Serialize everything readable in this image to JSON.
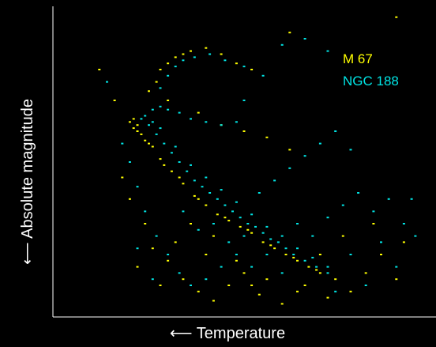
{
  "chart_data": {
    "type": "scatter",
    "title": "",
    "xlabel": "⟵ Temperature",
    "ylabel": "⟵ Absolute magnitude",
    "x_direction": "temperature decreases to the right",
    "y_direction": "magnitude increases downward",
    "grid": false,
    "legend": "top-right",
    "colors": {
      "background": "#000000",
      "axes": "#ffffff",
      "text": "#ffffff"
    },
    "series": [
      {
        "name": "M 67",
        "color": "#ffff00",
        "points": [
          [
            0.2,
            0.37
          ],
          [
            0.21,
            0.39
          ],
          [
            0.22,
            0.4
          ],
          [
            0.23,
            0.41
          ],
          [
            0.24,
            0.43
          ],
          [
            0.26,
            0.45
          ],
          [
            0.28,
            0.49
          ],
          [
            0.31,
            0.53
          ],
          [
            0.34,
            0.57
          ],
          [
            0.37,
            0.61
          ],
          [
            0.4,
            0.64
          ],
          [
            0.43,
            0.67
          ],
          [
            0.46,
            0.69
          ],
          [
            0.49,
            0.71
          ],
          [
            0.52,
            0.73
          ],
          [
            0.55,
            0.76
          ],
          [
            0.58,
            0.78
          ],
          [
            0.61,
            0.8
          ],
          [
            0.64,
            0.82
          ],
          [
            0.67,
            0.84
          ],
          [
            0.7,
            0.86
          ],
          [
            0.74,
            0.88
          ],
          [
            0.21,
            0.36
          ],
          [
            0.22,
            0.38
          ],
          [
            0.25,
            0.44
          ],
          [
            0.29,
            0.51
          ],
          [
            0.33,
            0.55
          ],
          [
            0.38,
            0.62
          ],
          [
            0.45,
            0.68
          ],
          [
            0.51,
            0.72
          ],
          [
            0.57,
            0.77
          ],
          [
            0.63,
            0.81
          ],
          [
            0.69,
            0.85
          ],
          [
            0.25,
            0.27
          ],
          [
            0.27,
            0.24
          ],
          [
            0.28,
            0.2
          ],
          [
            0.3,
            0.18
          ],
          [
            0.32,
            0.16
          ],
          [
            0.34,
            0.15
          ],
          [
            0.36,
            0.14
          ],
          [
            0.4,
            0.13
          ],
          [
            0.44,
            0.15
          ],
          [
            0.48,
            0.18
          ],
          [
            0.52,
            0.2
          ],
          [
            0.3,
            0.3
          ],
          [
            0.38,
            0.34
          ],
          [
            0.44,
            0.38
          ],
          [
            0.5,
            0.4
          ],
          [
            0.56,
            0.42
          ],
          [
            0.62,
            0.46
          ],
          [
            0.18,
            0.55
          ],
          [
            0.2,
            0.62
          ],
          [
            0.24,
            0.7
          ],
          [
            0.26,
            0.78
          ],
          [
            0.3,
            0.82
          ],
          [
            0.34,
            0.88
          ],
          [
            0.38,
            0.92
          ],
          [
            0.42,
            0.95
          ],
          [
            0.46,
            0.9
          ],
          [
            0.5,
            0.86
          ],
          [
            0.54,
            0.93
          ],
          [
            0.6,
            0.96
          ],
          [
            0.66,
            0.9
          ],
          [
            0.72,
            0.94
          ],
          [
            0.78,
            0.92
          ],
          [
            0.82,
            0.86
          ],
          [
            0.86,
            0.8
          ],
          [
            0.9,
            0.88
          ],
          [
            0.22,
            0.84
          ],
          [
            0.28,
            0.9
          ],
          [
            0.32,
            0.76
          ],
          [
            0.4,
            0.8
          ],
          [
            0.48,
            0.82
          ],
          [
            0.56,
            0.88
          ],
          [
            0.64,
            0.92
          ],
          [
            0.7,
            0.8
          ],
          [
            0.76,
            0.74
          ],
          [
            0.84,
            0.7
          ],
          [
            0.92,
            0.76
          ],
          [
            0.62,
            0.08
          ],
          [
            0.9,
            0.03
          ],
          [
            0.12,
            0.2
          ],
          [
            0.16,
            0.3
          ],
          [
            0.36,
            0.7
          ],
          [
            0.42,
            0.74
          ],
          [
            0.52,
            0.9
          ]
        ]
      },
      {
        "name": "NGC 188",
        "color": "#00e5e5",
        "points": [
          [
            0.23,
            0.36
          ],
          [
            0.25,
            0.38
          ],
          [
            0.27,
            0.41
          ],
          [
            0.29,
            0.44
          ],
          [
            0.31,
            0.47
          ],
          [
            0.33,
            0.5
          ],
          [
            0.35,
            0.53
          ],
          [
            0.37,
            0.56
          ],
          [
            0.39,
            0.58
          ],
          [
            0.41,
            0.6
          ],
          [
            0.43,
            0.62
          ],
          [
            0.45,
            0.64
          ],
          [
            0.47,
            0.66
          ],
          [
            0.49,
            0.68
          ],
          [
            0.51,
            0.7
          ],
          [
            0.53,
            0.71
          ],
          [
            0.55,
            0.73
          ],
          [
            0.57,
            0.75
          ],
          [
            0.59,
            0.76
          ],
          [
            0.61,
            0.78
          ],
          [
            0.63,
            0.8
          ],
          [
            0.66,
            0.82
          ],
          [
            0.69,
            0.84
          ],
          [
            0.72,
            0.86
          ],
          [
            0.24,
            0.35
          ],
          [
            0.26,
            0.37
          ],
          [
            0.28,
            0.39
          ],
          [
            0.32,
            0.45
          ],
          [
            0.36,
            0.51
          ],
          [
            0.4,
            0.55
          ],
          [
            0.44,
            0.59
          ],
          [
            0.48,
            0.63
          ],
          [
            0.52,
            0.67
          ],
          [
            0.56,
            0.71
          ],
          [
            0.6,
            0.74
          ],
          [
            0.64,
            0.78
          ],
          [
            0.68,
            0.81
          ],
          [
            0.72,
            0.84
          ],
          [
            0.26,
            0.33
          ],
          [
            0.28,
            0.32
          ],
          [
            0.3,
            0.33
          ],
          [
            0.33,
            0.34
          ],
          [
            0.36,
            0.36
          ],
          [
            0.4,
            0.37
          ],
          [
            0.44,
            0.38
          ],
          [
            0.48,
            0.37
          ],
          [
            0.28,
            0.26
          ],
          [
            0.3,
            0.22
          ],
          [
            0.32,
            0.19
          ],
          [
            0.34,
            0.17
          ],
          [
            0.37,
            0.16
          ],
          [
            0.41,
            0.15
          ],
          [
            0.45,
            0.17
          ],
          [
            0.5,
            0.19
          ],
          [
            0.55,
            0.22
          ],
          [
            0.2,
            0.5
          ],
          [
            0.22,
            0.58
          ],
          [
            0.24,
            0.66
          ],
          [
            0.27,
            0.74
          ],
          [
            0.3,
            0.8
          ],
          [
            0.33,
            0.86
          ],
          [
            0.36,
            0.9
          ],
          [
            0.4,
            0.88
          ],
          [
            0.44,
            0.84
          ],
          [
            0.48,
            0.8
          ],
          [
            0.52,
            0.84
          ],
          [
            0.56,
            0.8
          ],
          [
            0.6,
            0.86
          ],
          [
            0.64,
            0.7
          ],
          [
            0.68,
            0.74
          ],
          [
            0.72,
            0.68
          ],
          [
            0.76,
            0.64
          ],
          [
            0.8,
            0.6
          ],
          [
            0.84,
            0.66
          ],
          [
            0.88,
            0.62
          ],
          [
            0.92,
            0.7
          ],
          [
            0.95,
            0.74
          ],
          [
            0.78,
            0.8
          ],
          [
            0.86,
            0.76
          ],
          [
            0.34,
            0.66
          ],
          [
            0.38,
            0.72
          ],
          [
            0.42,
            0.7
          ],
          [
            0.46,
            0.76
          ],
          [
            0.5,
            0.74
          ],
          [
            0.54,
            0.6
          ],
          [
            0.58,
            0.56
          ],
          [
            0.62,
            0.52
          ],
          [
            0.66,
            0.48
          ],
          [
            0.7,
            0.44
          ],
          [
            0.74,
            0.4
          ],
          [
            0.78,
            0.46
          ],
          [
            0.6,
            0.12
          ],
          [
            0.66,
            0.1
          ],
          [
            0.72,
            0.14
          ],
          [
            0.14,
            0.24
          ],
          [
            0.18,
            0.44
          ],
          [
            0.22,
            0.78
          ],
          [
            0.26,
            0.88
          ],
          [
            0.74,
            0.92
          ],
          [
            0.82,
            0.9
          ],
          [
            0.9,
            0.84
          ],
          [
            0.94,
            0.62
          ],
          [
            0.5,
            0.3
          ]
        ]
      }
    ]
  }
}
